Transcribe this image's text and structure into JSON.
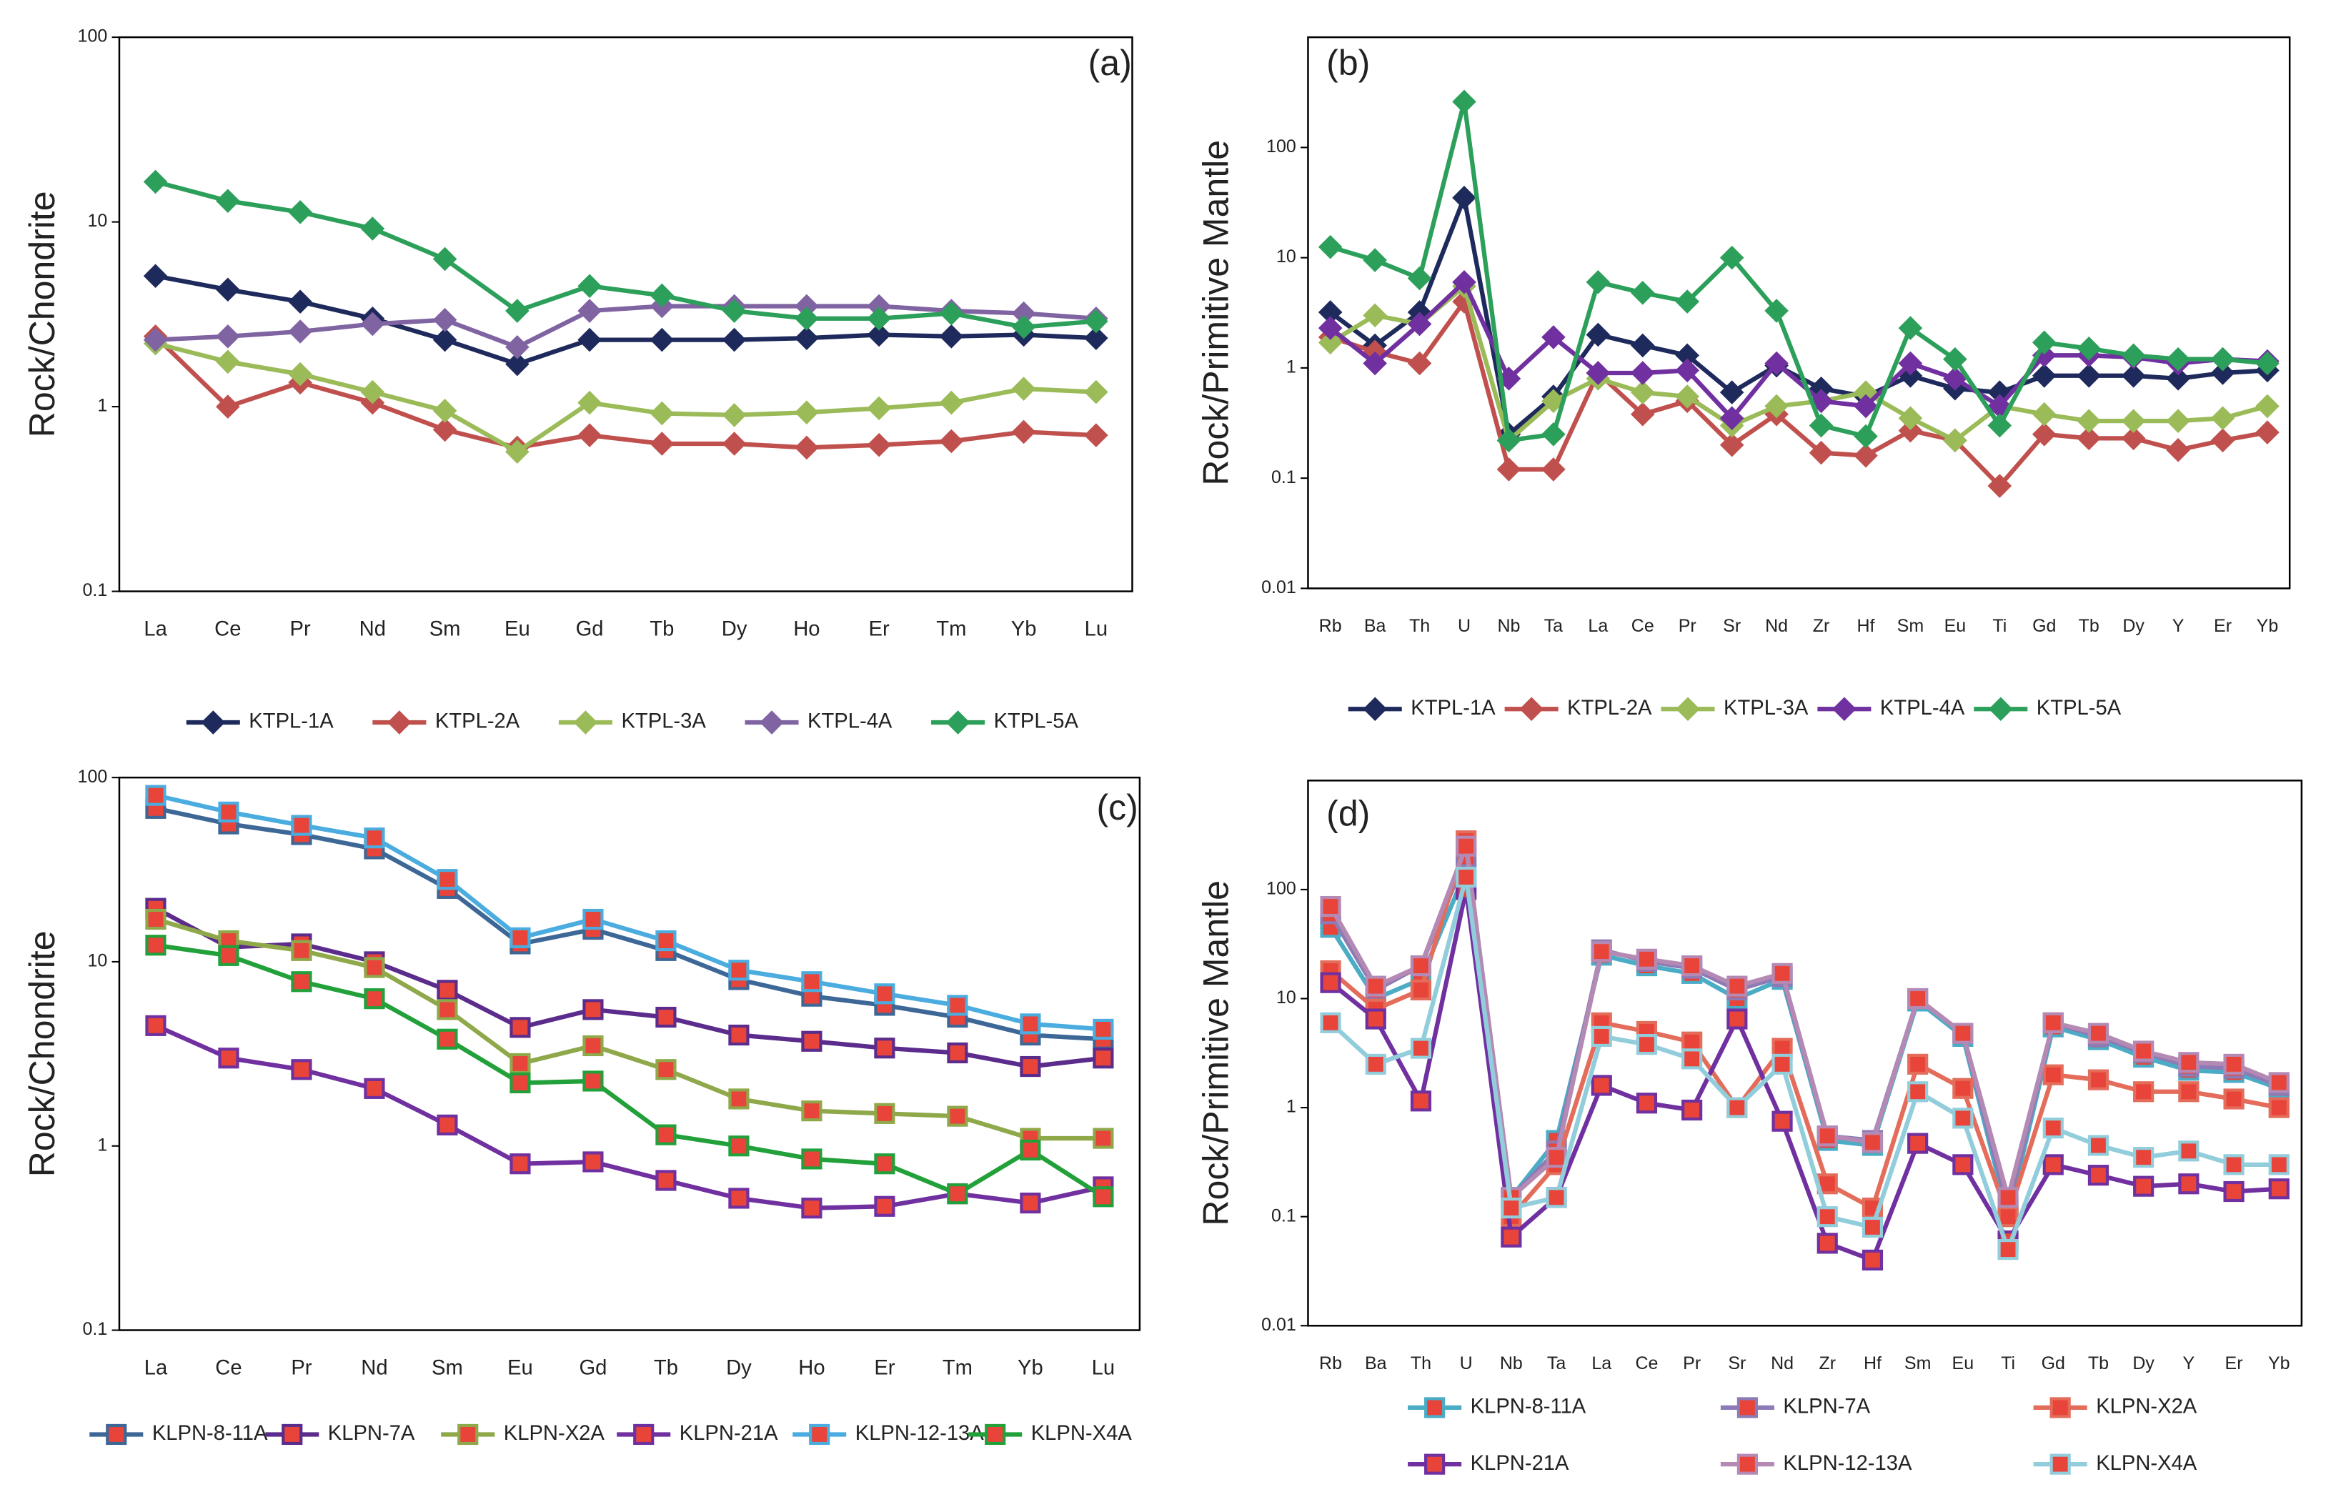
{
  "chart_data": [
    {
      "type": "line",
      "label": "(a)",
      "y_label": "Rock/Chondrite",
      "yscale": "log",
      "ylim": [
        0.1,
        100
      ],
      "yticks": [
        0.1,
        1,
        10,
        100
      ],
      "marker": "diamond",
      "categories": [
        "La",
        "Ce",
        "Pr",
        "Nd",
        "Sm",
        "Eu",
        "Gd",
        "Tb",
        "Dy",
        "Ho",
        "Er",
        "Tm",
        "Yb",
        "Lu"
      ],
      "series": [
        {
          "name": "KTPL-1A",
          "color": "#1f2a5c",
          "values": [
            5.1,
            4.3,
            3.7,
            3.0,
            2.3,
            1.7,
            2.3,
            2.3,
            2.3,
            2.35,
            2.45,
            2.4,
            2.45,
            2.35
          ]
        },
        {
          "name": "KTPL-2A",
          "color": "#c0504d",
          "values": [
            2.4,
            1.0,
            1.35,
            1.05,
            0.75,
            0.6,
            0.7,
            0.63,
            0.63,
            0.6,
            0.62,
            0.65,
            0.73,
            0.7
          ]
        },
        {
          "name": "KTPL-3A",
          "color": "#9bbb59",
          "values": [
            2.2,
            1.75,
            1.5,
            1.2,
            0.95,
            0.57,
            1.05,
            0.92,
            0.9,
            0.93,
            0.98,
            1.05,
            1.25,
            1.2
          ]
        },
        {
          "name": "KTPL-4A",
          "color": "#8064a2",
          "values": [
            2.3,
            2.4,
            2.55,
            2.8,
            2.95,
            2.1,
            3.3,
            3.5,
            3.5,
            3.5,
            3.5,
            3.3,
            3.2,
            3.0
          ]
        },
        {
          "name": "KTPL-5A",
          "color": "#2ca05a",
          "values": [
            16.5,
            13,
            11.3,
            9.2,
            6.3,
            3.3,
            4.5,
            4.0,
            3.3,
            3.0,
            3.0,
            3.2,
            2.7,
            2.9
          ]
        }
      ]
    },
    {
      "type": "line",
      "label": "(b)",
      "y_label": "Rock/Primitive Mantle",
      "yscale": "log",
      "ylim": [
        0.01,
        1000
      ],
      "yticks": [
        0.01,
        0.1,
        1,
        10,
        100
      ],
      "marker": "diamond",
      "categories": [
        "Rb",
        "Ba",
        "Th",
        "U",
        "Nb",
        "Ta",
        "La",
        "Ce",
        "Pr",
        "Sr",
        "Nd",
        "Zr",
        "Hf",
        "Sm",
        "Eu",
        "Ti",
        "Gd",
        "Tb",
        "Dy",
        "Y",
        "Er",
        "Yb"
      ],
      "series": [
        {
          "name": "KTPL-1A",
          "color": "#1f2a5c",
          "values": [
            3.2,
            1.6,
            3.2,
            35,
            0.25,
            0.55,
            2.0,
            1.6,
            1.3,
            0.6,
            1.05,
            0.65,
            0.55,
            0.85,
            0.65,
            0.6,
            0.85,
            0.85,
            0.85,
            0.8,
            0.9,
            0.95
          ]
        },
        {
          "name": "KTPL-2A",
          "color": "#c0504d",
          "values": [
            1.9,
            1.4,
            1.1,
            4.0,
            0.12,
            0.12,
            0.9,
            0.38,
            0.5,
            0.2,
            0.38,
            0.17,
            0.16,
            0.27,
            0.22,
            0.085,
            0.25,
            0.23,
            0.23,
            0.18,
            0.22,
            0.26
          ]
        },
        {
          "name": "KTPL-3A",
          "color": "#9bbb59",
          "values": [
            1.7,
            3.0,
            2.5,
            5.5,
            0.22,
            0.5,
            0.8,
            0.6,
            0.55,
            0.3,
            0.45,
            0.5,
            0.6,
            0.35,
            0.22,
            0.45,
            0.38,
            0.33,
            0.33,
            0.33,
            0.35,
            0.45
          ]
        },
        {
          "name": "KTPL-4A",
          "color": "#7030a0",
          "values": [
            2.3,
            1.1,
            2.5,
            6,
            0.8,
            1.9,
            0.9,
            0.9,
            0.95,
            0.35,
            1.1,
            0.5,
            0.45,
            1.1,
            0.8,
            0.45,
            1.3,
            1.3,
            1.25,
            1.1,
            1.2,
            1.15
          ]
        },
        {
          "name": "KTPL-5A",
          "color": "#2ca05a",
          "values": [
            12.5,
            9.5,
            6.5,
            260,
            0.22,
            0.25,
            6,
            4.8,
            4,
            10,
            3.3,
            0.3,
            0.24,
            2.3,
            1.2,
            0.3,
            1.7,
            1.5,
            1.3,
            1.2,
            1.2,
            1.1
          ]
        }
      ]
    },
    {
      "type": "line",
      "label": "(c)",
      "y_label": "Rock/Chondrite",
      "yscale": "log",
      "ylim": [
        0.1,
        100
      ],
      "yticks": [
        0.1,
        1,
        10,
        100
      ],
      "marker": "square",
      "marker_fill": "#e8443a",
      "categories": [
        "La",
        "Ce",
        "Pr",
        "Nd",
        "Sm",
        "Eu",
        "Gd",
        "Tb",
        "Dy",
        "Ho",
        "Er",
        "Tm",
        "Yb",
        "Lu"
      ],
      "series": [
        {
          "name": "KLPN-8-11A",
          "color": "#3d6796",
          "values": [
            68,
            56,
            49,
            41,
            25,
            12.5,
            15,
            11.5,
            8,
            6.5,
            5.8,
            5,
            4,
            3.8
          ]
        },
        {
          "name": "KLPN-7A",
          "color": "#5b2c8c",
          "values": [
            19.5,
            12,
            12.5,
            10,
            7,
            4.4,
            5.5,
            5,
            4,
            3.7,
            3.4,
            3.2,
            2.7,
            3.0
          ]
        },
        {
          "name": "KLPN-X2A",
          "color": "#8fa84a",
          "values": [
            17,
            13,
            11.5,
            9.3,
            5.5,
            2.8,
            3.5,
            2.6,
            1.8,
            1.55,
            1.5,
            1.45,
            1.1,
            1.1
          ]
        },
        {
          "name": "KLPN-21A",
          "color": "#7030a0",
          "values": [
            4.5,
            3.0,
            2.6,
            2.05,
            1.3,
            0.8,
            0.82,
            0.65,
            0.52,
            0.46,
            0.47,
            0.55,
            0.49,
            0.6
          ]
        },
        {
          "name": "KLPN-12-13A",
          "color": "#4bacdf",
          "values": [
            80,
            65,
            55,
            47,
            28,
            13.5,
            17,
            13,
            9,
            7.8,
            6.7,
            5.8,
            4.6,
            4.3
          ]
        },
        {
          "name": "KLPN-X4A",
          "color": "#22a03a",
          "values": [
            12.3,
            10.8,
            7.8,
            6.3,
            3.8,
            2.2,
            2.25,
            1.15,
            1.0,
            0.85,
            0.8,
            0.55,
            0.95,
            0.53
          ]
        }
      ]
    },
    {
      "type": "line",
      "label": "(d)",
      "y_label": "Rock/Primitive Mantle",
      "yscale": "log",
      "ylim": [
        0.01,
        1000
      ],
      "yticks": [
        0.01,
        0.1,
        1,
        10,
        100
      ],
      "marker": "square",
      "marker_fill": "#e8443a",
      "categories": [
        "Rb",
        "Ba",
        "Th",
        "U",
        "Nb",
        "Ta",
        "La",
        "Ce",
        "Pr",
        "Sr",
        "Nd",
        "Zr",
        "Hf",
        "Sm",
        "Eu",
        "Ti",
        "Gd",
        "Tb",
        "Dy",
        "Y",
        "Er",
        "Yb"
      ],
      "series": [
        {
          "name": "KLPN-8-11A",
          "color": "#4bacc6",
          "values": [
            45,
            10,
            15,
            150,
            0.15,
            0.5,
            25,
            20,
            17,
            10,
            15,
            0.5,
            0.45,
            9.5,
            4.5,
            0.1,
            5.5,
            4.2,
            2.9,
            2.2,
            2.1,
            1.5
          ]
        },
        {
          "name": "KLPN-7A",
          "color": "#8c7bb5",
          "values": [
            60,
            12,
            20,
            200,
            0.15,
            0.4,
            28,
            22,
            19,
            12,
            16,
            0.55,
            0.5,
            10,
            4.8,
            0.12,
            6,
            4.5,
            3.2,
            2.4,
            2.3,
            1.6
          ]
        },
        {
          "name": "KLPN-X2A",
          "color": "#e36c5a",
          "values": [
            18,
            8,
            12,
            280,
            0.1,
            0.3,
            6,
            5,
            4,
            1.0,
            3.5,
            0.2,
            0.12,
            2.5,
            1.5,
            0.1,
            2,
            1.8,
            1.4,
            1.4,
            1.2,
            1.0
          ]
        },
        {
          "name": "KLPN-21A",
          "color": "#7030a0",
          "values": [
            14,
            6.5,
            1.15,
            100,
            0.065,
            0.15,
            1.6,
            1.1,
            0.95,
            6.5,
            0.75,
            0.057,
            0.04,
            0.47,
            0.3,
            0.06,
            0.3,
            0.24,
            0.19,
            0.2,
            0.17,
            0.18
          ]
        },
        {
          "name": "KLPN-12-13A",
          "color": "#b48ab4",
          "values": [
            70,
            13,
            20,
            250,
            0.15,
            0.35,
            27,
            23,
            20,
            13,
            17,
            0.55,
            0.48,
            10,
            4.8,
            0.15,
            6,
            4.8,
            3.3,
            2.6,
            2.5,
            1.7
          ]
        },
        {
          "name": "KLPN-X4A",
          "color": "#92cddc",
          "values": [
            6,
            2.5,
            3.5,
            130,
            0.12,
            0.15,
            4.5,
            3.8,
            2.8,
            1.0,
            2.5,
            0.1,
            0.08,
            1.4,
            0.8,
            0.05,
            0.65,
            0.45,
            0.35,
            0.4,
            0.3,
            0.3
          ]
        }
      ]
    }
  ]
}
